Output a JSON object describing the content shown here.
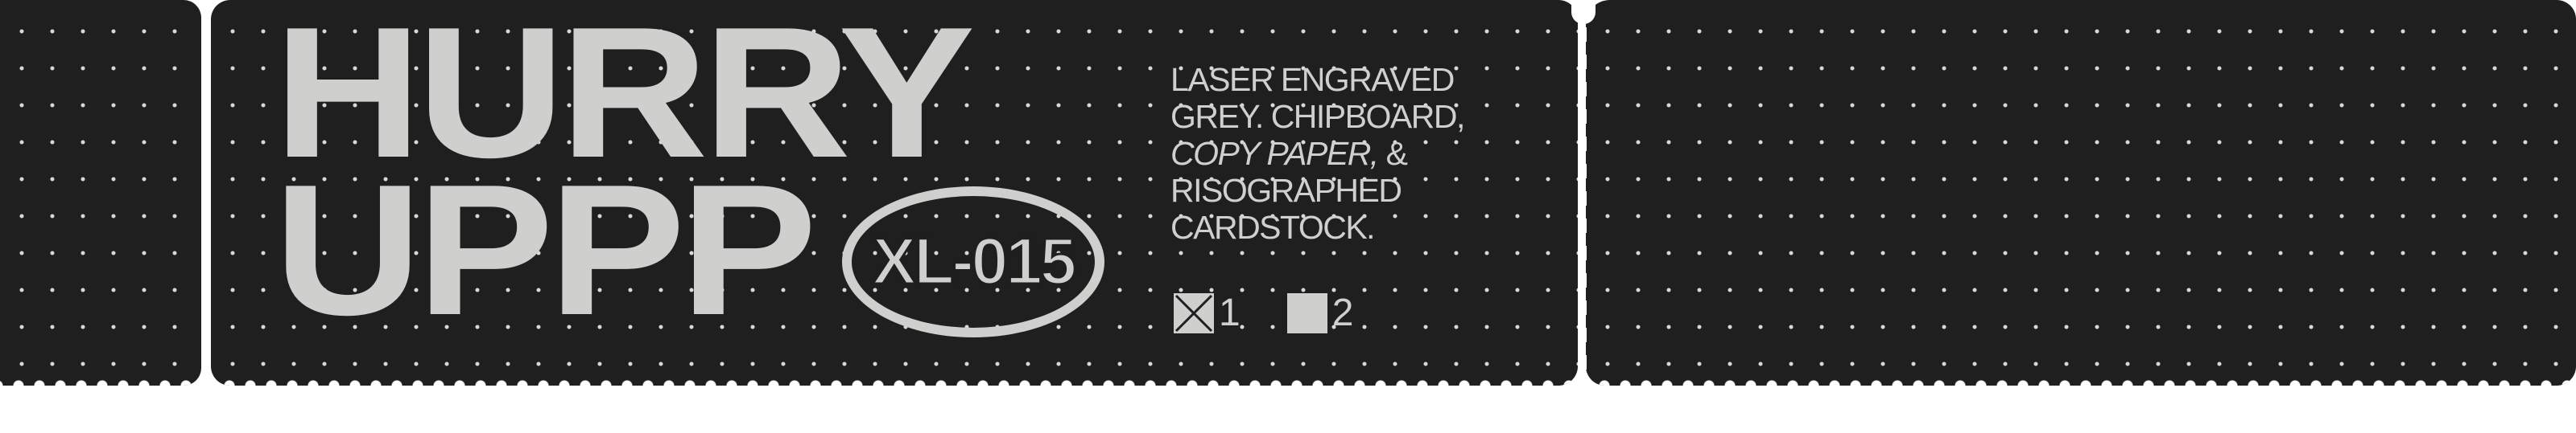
{
  "title_lines": [
    "HURRY",
    "UPPP"
  ],
  "badge": "XL-015",
  "description": {
    "line1": "LASER ENGRAVED",
    "line2": "GREY. CHIPBOARD,",
    "line3_italic": "COPY PAPER,",
    "line3_tail": " &",
    "line4": "RISOGRAPHED",
    "line5": "CARDSTOCK."
  },
  "options": [
    {
      "label": "1",
      "checked": true
    },
    {
      "label": "2",
      "checked": false
    }
  ],
  "colors": {
    "background": "#1f1f1f",
    "ink": "#cfd0ce",
    "paper": "#ffffff"
  }
}
